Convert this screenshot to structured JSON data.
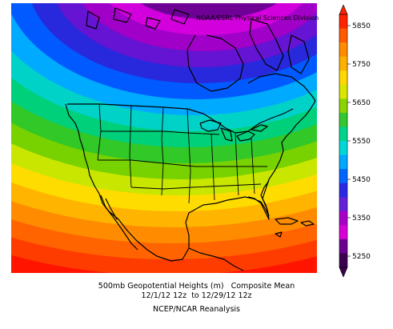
{
  "credit": "NOAA/ESRL Physical Sciences Division",
  "caption": {
    "line1": "500mb Geopotential Heights (m)   Composite Mean",
    "line2": "12/1/12 12z  to 12/29/12 12z",
    "line3": "NCEP/NCAR Reanalysis"
  },
  "colorbar": {
    "labels": [
      "5850",
      "5750",
      "5650",
      "5550",
      "5450",
      "5350",
      "5250"
    ],
    "colors": [
      "#ff2200",
      "#ff5a00",
      "#ff8c00",
      "#ffb000",
      "#ffd800",
      "#d8e600",
      "#8cd400",
      "#33c830",
      "#00d48c",
      "#00d8d8",
      "#00a8ff",
      "#0066ff",
      "#2828e6",
      "#6420d8",
      "#a800c8",
      "#d800d8",
      "#6c0090",
      "#3c0050"
    ]
  },
  "map": {
    "band_colors": [
      "#ff1400",
      "#ff3c00",
      "#ff6400",
      "#ff8c00",
      "#ffb400",
      "#ffdc00",
      "#c8e600",
      "#78d200",
      "#32c828",
      "#00d07a",
      "#00d2c8",
      "#00aaff",
      "#005aff",
      "#2828dc",
      "#6414d2",
      "#a000c8",
      "#d200dc",
      "#6e0096",
      "#3c0050"
    ]
  }
}
